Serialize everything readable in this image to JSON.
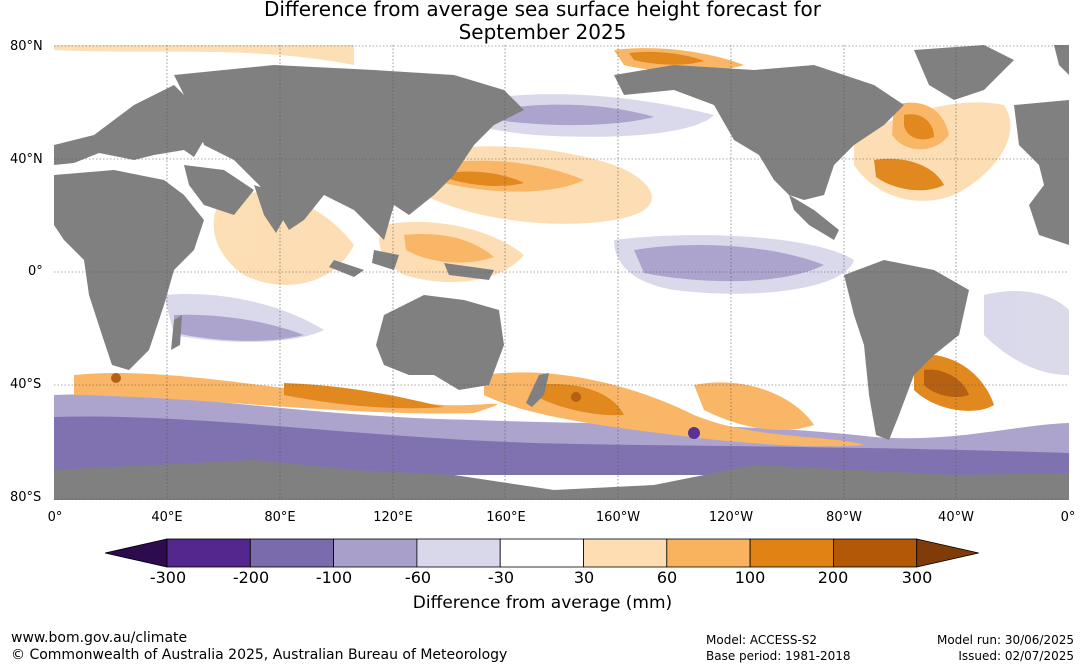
{
  "title_line1": "Difference from average sea surface height forecast for",
  "title_line2": "September 2025",
  "lat_labels": [
    "80°N",
    "40°N",
    "0°",
    "40°S",
    "80°S"
  ],
  "lon_labels": [
    "0°",
    "40°E",
    "80°E",
    "120°E",
    "160°E",
    "160°W",
    "120°W",
    "80°W",
    "40°W",
    "0°"
  ],
  "colorbar": {
    "label": "Difference from average (mm)",
    "ticks": [
      "-300",
      "-200",
      "-100",
      "-60",
      "-30",
      "30",
      "60",
      "100",
      "200",
      "300"
    ],
    "colors": [
      "#2d0b4e",
      "#54278f",
      "#7a6bac",
      "#a8a0cb",
      "#d8d8ea",
      "#ffffff",
      "#fdddb1",
      "#f9b35f",
      "#e08214",
      "#b35806",
      "#7f3b08"
    ]
  },
  "map_colors": {
    "land": "#808080",
    "ocean": "#ffffff",
    "grid": "#555555"
  },
  "footer": {
    "website": "www.bom.gov.au/climate",
    "copyright": "© Commonwealth of Australia 2025, Australian Bureau of Meteorology",
    "model": "Model: ACCESS-S2",
    "base_period": "Base period: 1981-2018",
    "model_run": "Model run: 30/06/2025",
    "issued": "Issued: 02/07/2025"
  }
}
